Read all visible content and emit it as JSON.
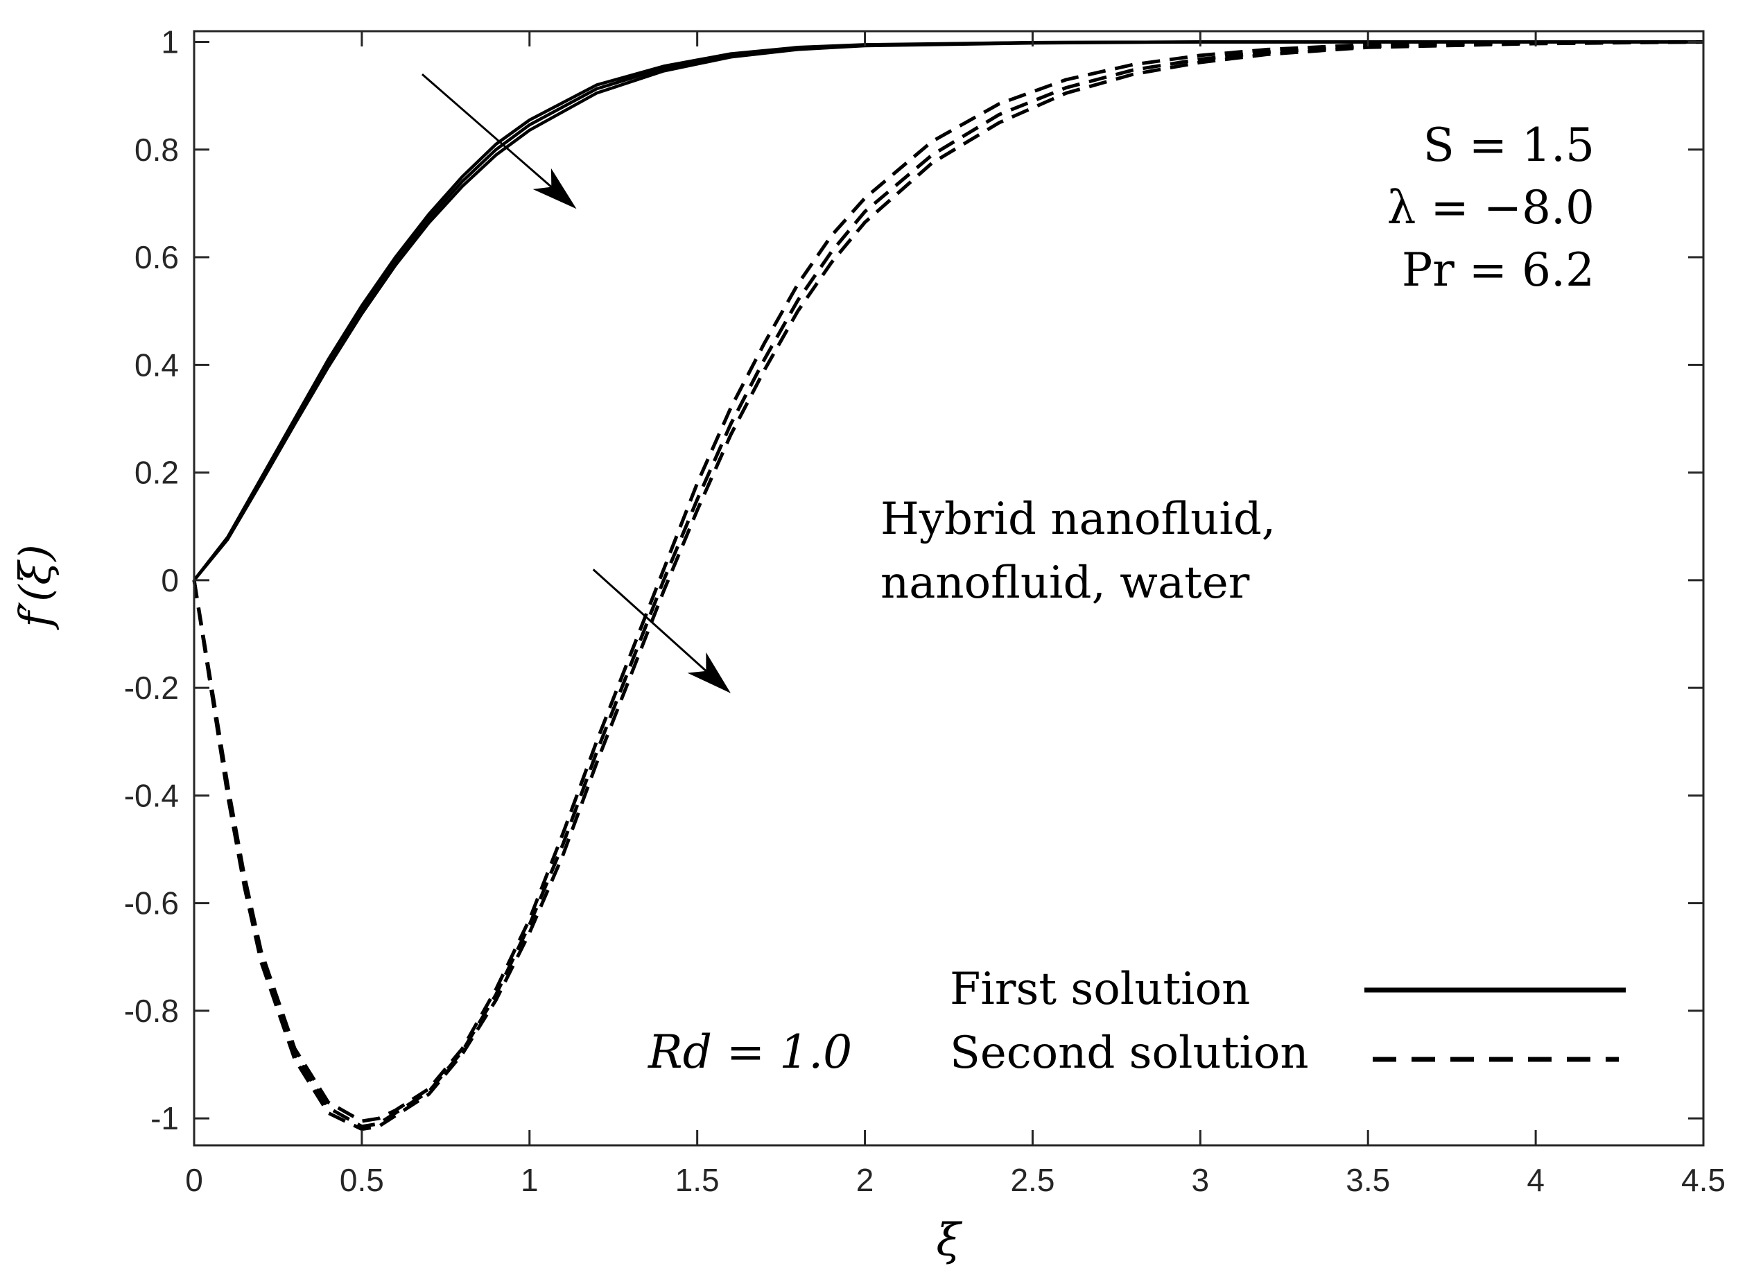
{
  "chart_data": {
    "type": "line",
    "title": "",
    "xlabel": "ξ",
    "ylabel": "f′(ξ)",
    "xlim": [
      0,
      4.5
    ],
    "ylim": [
      -1.05,
      1.02
    ],
    "x_ticks": [
      0,
      0.5,
      1,
      1.5,
      2,
      2.5,
      3,
      3.5,
      4,
      4.5
    ],
    "x_tick_labels": [
      "0",
      "0.5",
      "1",
      "1.5",
      "2",
      "2.5",
      "3",
      "3.5",
      "4",
      "4.5"
    ],
    "y_ticks": [
      1,
      0.8,
      0.6,
      0.4,
      0.2,
      0,
      -0.2,
      -0.4,
      -0.6,
      -0.8,
      -1
    ],
    "y_tick_labels": [
      "1",
      "0.8",
      "0.6",
      "0.4",
      "0.2",
      "0",
      "-0.2",
      "-0.4",
      "-0.6",
      "-0.8",
      "-1"
    ],
    "grid": false,
    "legend": [
      {
        "label": "First solution",
        "style": "solid"
      },
      {
        "label": "Second solution",
        "style": "dashed"
      }
    ],
    "legend_position": "bottom-right",
    "parameters": [
      "S = 1.5",
      "λ = −8.0",
      "Pr = 6.2"
    ],
    "annotations": {
      "fluids_line1": "Hybrid nanofluid,",
      "fluids_line2": "nanofluid, water",
      "rd": "Rd = 1.0"
    },
    "arrows": [
      {
        "from": [
          0.68,
          0.94
        ],
        "to": [
          1.14,
          0.69
        ]
      },
      {
        "from": [
          1.19,
          0.02
        ],
        "to": [
          1.6,
          -0.21
        ]
      }
    ],
    "series": [
      {
        "name": "First solution - hybrid nanofluid",
        "style": "solid",
        "x": [
          0,
          0.1,
          0.2,
          0.3,
          0.4,
          0.5,
          0.6,
          0.7,
          0.8,
          0.9,
          1.0,
          1.2,
          1.4,
          1.6,
          1.8,
          2.0,
          2.5,
          3.0,
          3.5,
          4.0,
          4.5
        ],
        "y": [
          0,
          0.08,
          0.19,
          0.3,
          0.41,
          0.51,
          0.6,
          0.68,
          0.75,
          0.81,
          0.855,
          0.92,
          0.955,
          0.978,
          0.99,
          0.995,
          0.999,
          1.0,
          1.0,
          1.0,
          1.0
        ]
      },
      {
        "name": "First solution - nanofluid",
        "style": "solid",
        "x": [
          0,
          0.1,
          0.2,
          0.3,
          0.4,
          0.5,
          0.6,
          0.7,
          0.8,
          0.9,
          1.0,
          1.2,
          1.4,
          1.6,
          1.8,
          2.0,
          2.5,
          3.0,
          3.5,
          4.0,
          4.5
        ],
        "y": [
          0,
          0.078,
          0.186,
          0.295,
          0.403,
          0.503,
          0.593,
          0.672,
          0.741,
          0.8,
          0.846,
          0.913,
          0.951,
          0.975,
          0.988,
          0.994,
          0.999,
          1.0,
          1.0,
          1.0,
          1.0
        ]
      },
      {
        "name": "First solution - water",
        "style": "solid",
        "x": [
          0,
          0.1,
          0.2,
          0.3,
          0.4,
          0.5,
          0.6,
          0.7,
          0.8,
          0.9,
          1.0,
          1.2,
          1.4,
          1.6,
          1.8,
          2.0,
          2.5,
          3.0,
          3.5,
          4.0,
          4.5
        ],
        "y": [
          0,
          0.076,
          0.182,
          0.29,
          0.396,
          0.495,
          0.585,
          0.664,
          0.732,
          0.79,
          0.836,
          0.905,
          0.946,
          0.972,
          0.986,
          0.993,
          0.998,
          1.0,
          1.0,
          1.0,
          1.0
        ]
      },
      {
        "name": "Second solution - hybrid nanofluid",
        "style": "dashed",
        "x": [
          0,
          0.05,
          0.1,
          0.15,
          0.2,
          0.3,
          0.4,
          0.5,
          0.55,
          0.6,
          0.7,
          0.8,
          0.9,
          1.0,
          1.1,
          1.2,
          1.3,
          1.4,
          1.5,
          1.6,
          1.7,
          1.8,
          1.9,
          2.0,
          2.2,
          2.4,
          2.6,
          2.8,
          3.0,
          3.2,
          3.5,
          4.0,
          4.5
        ],
        "y": [
          0,
          -0.19,
          -0.38,
          -0.55,
          -0.69,
          -0.87,
          -0.97,
          -1.005,
          -1.0,
          -0.985,
          -0.945,
          -0.87,
          -0.76,
          -0.63,
          -0.47,
          -0.3,
          -0.14,
          0.02,
          0.18,
          0.32,
          0.44,
          0.55,
          0.64,
          0.71,
          0.815,
          0.885,
          0.93,
          0.958,
          0.975,
          0.986,
          0.995,
          0.999,
          1.0
        ]
      },
      {
        "name": "Second solution - nanofluid",
        "style": "dashed",
        "x": [
          0,
          0.05,
          0.1,
          0.15,
          0.2,
          0.3,
          0.4,
          0.5,
          0.55,
          0.6,
          0.7,
          0.8,
          0.9,
          1.0,
          1.1,
          1.2,
          1.3,
          1.4,
          1.5,
          1.6,
          1.7,
          1.8,
          1.9,
          2.0,
          2.2,
          2.4,
          2.6,
          2.8,
          3.0,
          3.2,
          3.5,
          4.0,
          4.5
        ],
        "y": [
          0,
          -0.2,
          -0.39,
          -0.56,
          -0.7,
          -0.88,
          -0.98,
          -1.015,
          -1.01,
          -0.99,
          -0.95,
          -0.875,
          -0.77,
          -0.64,
          -0.49,
          -0.32,
          -0.16,
          0.0,
          0.15,
          0.29,
          0.41,
          0.52,
          0.61,
          0.685,
          0.79,
          0.865,
          0.915,
          0.948,
          0.968,
          0.981,
          0.992,
          0.998,
          1.0
        ]
      },
      {
        "name": "Second solution - water",
        "style": "dashed",
        "x": [
          0,
          0.05,
          0.1,
          0.15,
          0.2,
          0.3,
          0.4,
          0.5,
          0.55,
          0.6,
          0.7,
          0.8,
          0.9,
          1.0,
          1.1,
          1.2,
          1.3,
          1.4,
          1.5,
          1.6,
          1.7,
          1.8,
          1.9,
          2.0,
          2.2,
          2.4,
          2.6,
          2.8,
          3.0,
          3.2,
          3.5,
          4.0,
          4.5
        ],
        "y": [
          0,
          -0.2,
          -0.4,
          -0.57,
          -0.71,
          -0.89,
          -0.99,
          -1.02,
          -1.015,
          -0.995,
          -0.955,
          -0.88,
          -0.78,
          -0.655,
          -0.51,
          -0.34,
          -0.18,
          -0.02,
          0.13,
          0.27,
          0.39,
          0.5,
          0.59,
          0.665,
          0.775,
          0.85,
          0.905,
          0.94,
          0.962,
          0.977,
          0.99,
          0.997,
          1.0
        ]
      }
    ]
  }
}
